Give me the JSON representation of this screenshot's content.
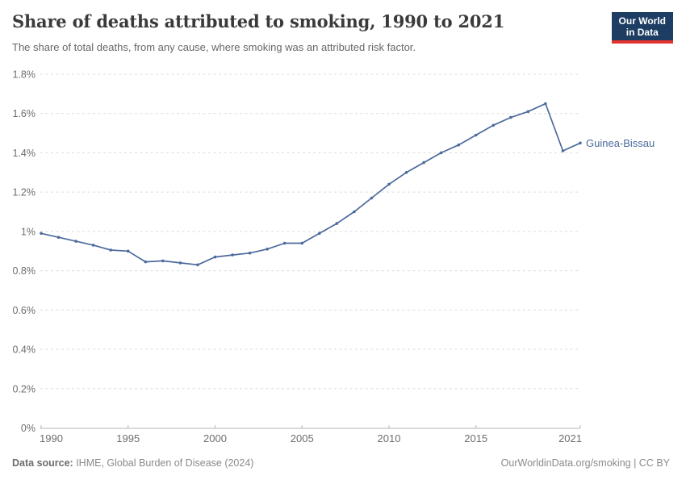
{
  "header": {
    "title": "Share of deaths attributed to smoking, 1990 to 2021",
    "subtitle": "The share of total deaths, from any cause, where smoking was an attributed risk factor.",
    "logo": {
      "line1": "Our World",
      "line2": "in Data"
    }
  },
  "chart_data": {
    "type": "line",
    "title": "Share of deaths attributed to smoking, 1990 to 2021",
    "xlabel": "",
    "ylabel": "",
    "xlim": [
      1990,
      2021
    ],
    "ylim": [
      0,
      1.8
    ],
    "grid": "horizontal-dashed",
    "legend_position": "end-of-line-label",
    "yticks": [
      0,
      0.2,
      0.4,
      0.6,
      0.8,
      1.0,
      1.2,
      1.4,
      1.6,
      1.8
    ],
    "ytick_labels": [
      "0%",
      "0.2%",
      "0.4%",
      "0.6%",
      "0.8%",
      "1%",
      "1.2%",
      "1.4%",
      "1.6%",
      "1.8%"
    ],
    "xticks": [
      1990,
      1995,
      2000,
      2005,
      2010,
      2015,
      2021
    ],
    "end_label": "Guinea-Bissau",
    "series": [
      {
        "name": "Guinea-Bissau",
        "color": "#4C6A9C",
        "x": [
          1990,
          1991,
          1992,
          1993,
          1994,
          1995,
          1996,
          1997,
          1998,
          1999,
          2000,
          2001,
          2002,
          2003,
          2004,
          2005,
          2006,
          2007,
          2008,
          2009,
          2010,
          2011,
          2012,
          2013,
          2014,
          2015,
          2016,
          2017,
          2018,
          2019,
          2020,
          2021
        ],
        "values": [
          0.99,
          0.97,
          0.95,
          0.93,
          0.905,
          0.9,
          0.845,
          0.85,
          0.84,
          0.83,
          0.87,
          0.88,
          0.89,
          0.91,
          0.94,
          0.94,
          0.99,
          1.04,
          1.1,
          1.17,
          1.24,
          1.3,
          1.35,
          1.4,
          1.44,
          1.49,
          1.54,
          1.58,
          1.61,
          1.65,
          1.41,
          1.45
        ]
      }
    ]
  },
  "footer": {
    "source_label": "Data source:",
    "source_text": " IHME, Global Burden of Disease (2024)",
    "credit": "OurWorldinData.org/smoking | CC BY"
  },
  "colors": {
    "series_blue": "#4C6A9C",
    "logo_bg": "#1d3d63",
    "logo_accent": "#e4332e",
    "gridline": "#dcdcdc",
    "axis": "#b5b5b5",
    "title_text": "#3a3a3a",
    "muted_text": "#6e6e6e"
  }
}
